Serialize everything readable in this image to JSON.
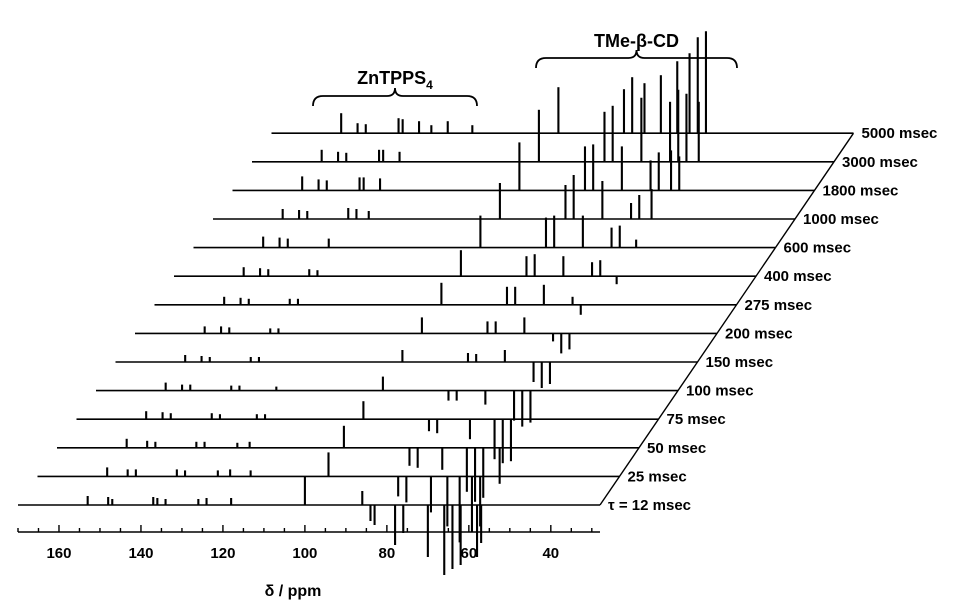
{
  "chart_data": {
    "type": "line",
    "subtype": "stacked-nmr-spectra",
    "title": "",
    "xlabel": "δ / ppm",
    "ylabel": "",
    "xlim": [
      170,
      28
    ],
    "x_reversed": true,
    "x_ticks": [
      160,
      140,
      120,
      100,
      80,
      60,
      40
    ],
    "x_tick_labels": [
      "160",
      "140",
      "120",
      "100",
      "80",
      "60",
      "40"
    ],
    "grid": false,
    "annotations": [
      {
        "label": "ZnTPPS",
        "subscript": "4",
        "x_range": [
          118,
          68
        ]
      },
      {
        "label": "TMe-β-CD",
        "x_range": [
          42,
          0
        ]
      }
    ],
    "traces": [
      {
        "label": "τ = 12 msec",
        "peaks": [
          {
            "ppm": 153,
            "h": 9
          },
          {
            "ppm": 148,
            "h": 8
          },
          {
            "ppm": 147,
            "h": 6
          },
          {
            "ppm": 137,
            "h": 8
          },
          {
            "ppm": 136,
            "h": 7
          },
          {
            "ppm": 134,
            "h": 6
          },
          {
            "ppm": 126,
            "h": 6
          },
          {
            "ppm": 124,
            "h": 7
          },
          {
            "ppm": 118,
            "h": 7
          },
          {
            "ppm": 100,
            "h": 28
          },
          {
            "ppm": 86,
            "h": 14
          },
          {
            "ppm": 84,
            "h": -16
          },
          {
            "ppm": 83,
            "h": -20
          },
          {
            "ppm": 78,
            "h": -40
          },
          {
            "ppm": 76,
            "h": -28
          },
          {
            "ppm": 70,
            "h": -52
          },
          {
            "ppm": 66,
            "h": -70
          },
          {
            "ppm": 64,
            "h": -64
          },
          {
            "ppm": 62,
            "h": -60
          },
          {
            "ppm": 58,
            "h": -52
          },
          {
            "ppm": 57,
            "h": -38
          }
        ]
      },
      {
        "label": "25 msec",
        "peaks": [
          {
            "ppm": 153,
            "h": 9
          },
          {
            "ppm": 148,
            "h": 7
          },
          {
            "ppm": 146,
            "h": 7
          },
          {
            "ppm": 136,
            "h": 7
          },
          {
            "ppm": 134,
            "h": 6
          },
          {
            "ppm": 126,
            "h": 6
          },
          {
            "ppm": 123,
            "h": 7
          },
          {
            "ppm": 118,
            "h": 6
          },
          {
            "ppm": 99,
            "h": 24
          },
          {
            "ppm": 82,
            "h": -20
          },
          {
            "ppm": 80,
            "h": -26
          },
          {
            "ppm": 74,
            "h": -36
          },
          {
            "ppm": 70,
            "h": -50
          },
          {
            "ppm": 67,
            "h": -66
          },
          {
            "ppm": 64,
            "h": -56
          },
          {
            "ppm": 62,
            "h": -50
          }
        ]
      },
      {
        "label": "50 msec",
        "peaks": [
          {
            "ppm": 153,
            "h": 9
          },
          {
            "ppm": 148,
            "h": 7
          },
          {
            "ppm": 146,
            "h": 6
          },
          {
            "ppm": 136,
            "h": 6
          },
          {
            "ppm": 134,
            "h": 6
          },
          {
            "ppm": 126,
            "h": 5
          },
          {
            "ppm": 123,
            "h": 6
          },
          {
            "ppm": 100,
            "h": 22
          },
          {
            "ppm": 84,
            "h": -18
          },
          {
            "ppm": 82,
            "h": -20
          },
          {
            "ppm": 76,
            "h": -22
          },
          {
            "ppm": 70,
            "h": -44
          },
          {
            "ppm": 68,
            "h": -54
          },
          {
            "ppm": 66,
            "h": -50
          },
          {
            "ppm": 62,
            "h": -36
          }
        ]
      },
      {
        "label": "75 msec",
        "peaks": [
          {
            "ppm": 153,
            "h": 8
          },
          {
            "ppm": 149,
            "h": 7
          },
          {
            "ppm": 147,
            "h": 6
          },
          {
            "ppm": 137,
            "h": 6
          },
          {
            "ppm": 135,
            "h": 5
          },
          {
            "ppm": 126,
            "h": 5
          },
          {
            "ppm": 124,
            "h": 5
          },
          {
            "ppm": 100,
            "h": 18
          },
          {
            "ppm": 84,
            "h": -12
          },
          {
            "ppm": 82,
            "h": -14
          },
          {
            "ppm": 74,
            "h": -20
          },
          {
            "ppm": 68,
            "h": -40
          },
          {
            "ppm": 66,
            "h": -44
          },
          {
            "ppm": 64,
            "h": -42
          }
        ]
      },
      {
        "label": "100 msec",
        "peaks": [
          {
            "ppm": 153,
            "h": 8
          },
          {
            "ppm": 149,
            "h": 6
          },
          {
            "ppm": 147,
            "h": 6
          },
          {
            "ppm": 137,
            "h": 5
          },
          {
            "ppm": 135,
            "h": 5
          },
          {
            "ppm": 126,
            "h": 4
          },
          {
            "ppm": 100,
            "h": 14
          },
          {
            "ppm": 84,
            "h": -10
          },
          {
            "ppm": 82,
            "h": -10
          },
          {
            "ppm": 75,
            "h": -14
          },
          {
            "ppm": 68,
            "h": -30
          },
          {
            "ppm": 66,
            "h": -36
          },
          {
            "ppm": 64,
            "h": -32
          }
        ]
      },
      {
        "label": "150 msec",
        "peaks": [
          {
            "ppm": 153,
            "h": 7
          },
          {
            "ppm": 149,
            "h": 6
          },
          {
            "ppm": 147,
            "h": 5
          },
          {
            "ppm": 137,
            "h": 5
          },
          {
            "ppm": 135,
            "h": 5
          },
          {
            "ppm": 100,
            "h": 12
          },
          {
            "ppm": 84,
            "h": 9
          },
          {
            "ppm": 82,
            "h": 8
          },
          {
            "ppm": 75,
            "h": 12
          },
          {
            "ppm": 68,
            "h": -20
          },
          {
            "ppm": 66,
            "h": -26
          },
          {
            "ppm": 64,
            "h": -22
          }
        ]
      },
      {
        "label": "200 msec",
        "peaks": [
          {
            "ppm": 153,
            "h": 7
          },
          {
            "ppm": 149,
            "h": 7
          },
          {
            "ppm": 147,
            "h": 6
          },
          {
            "ppm": 137,
            "h": 5
          },
          {
            "ppm": 135,
            "h": 5
          },
          {
            "ppm": 100,
            "h": 16
          },
          {
            "ppm": 84,
            "h": 12
          },
          {
            "ppm": 82,
            "h": 12
          },
          {
            "ppm": 75,
            "h": 16
          },
          {
            "ppm": 68,
            "h": -8
          },
          {
            "ppm": 66,
            "h": -20
          },
          {
            "ppm": 64,
            "h": -16
          }
        ]
      },
      {
        "label": "275 msec",
        "peaks": [
          {
            "ppm": 153,
            "h": 8
          },
          {
            "ppm": 149,
            "h": 7
          },
          {
            "ppm": 147,
            "h": 6
          },
          {
            "ppm": 137,
            "h": 6
          },
          {
            "ppm": 135,
            "h": 6
          },
          {
            "ppm": 100,
            "h": 22
          },
          {
            "ppm": 84,
            "h": 18
          },
          {
            "ppm": 82,
            "h": 18
          },
          {
            "ppm": 75,
            "h": 20
          },
          {
            "ppm": 68,
            "h": 8
          },
          {
            "ppm": 66,
            "h": -10
          }
        ]
      },
      {
        "label": "400 msec",
        "peaks": [
          {
            "ppm": 153,
            "h": 9
          },
          {
            "ppm": 149,
            "h": 8
          },
          {
            "ppm": 147,
            "h": 7
          },
          {
            "ppm": 137,
            "h": 7
          },
          {
            "ppm": 135,
            "h": 6
          },
          {
            "ppm": 100,
            "h": 26
          },
          {
            "ppm": 84,
            "h": 20
          },
          {
            "ppm": 82,
            "h": 22
          },
          {
            "ppm": 75,
            "h": 20
          },
          {
            "ppm": 68,
            "h": 14
          },
          {
            "ppm": 66,
            "h": 16
          },
          {
            "ppm": 62,
            "h": -8
          }
        ]
      },
      {
        "label": "600 msec",
        "peaks": [
          {
            "ppm": 153,
            "h": 11
          },
          {
            "ppm": 149,
            "h": 10
          },
          {
            "ppm": 147,
            "h": 9
          },
          {
            "ppm": 137,
            "h": 9
          },
          {
            "ppm": 100,
            "h": 32
          },
          {
            "ppm": 84,
            "h": 30
          },
          {
            "ppm": 82,
            "h": 32
          },
          {
            "ppm": 75,
            "h": 32
          },
          {
            "ppm": 68,
            "h": 20
          },
          {
            "ppm": 66,
            "h": 22
          },
          {
            "ppm": 62,
            "h": 8
          }
        ]
      },
      {
        "label": "1000 msec",
        "peaks": [
          {
            "ppm": 153,
            "h": 10
          },
          {
            "ppm": 149,
            "h": 9
          },
          {
            "ppm": 147,
            "h": 8
          },
          {
            "ppm": 137,
            "h": 11
          },
          {
            "ppm": 135,
            "h": 10
          },
          {
            "ppm": 132,
            "h": 8
          },
          {
            "ppm": 100,
            "h": 36
          },
          {
            "ppm": 84,
            "h": 34
          },
          {
            "ppm": 82,
            "h": 44
          },
          {
            "ppm": 75,
            "h": 38
          },
          {
            "ppm": 68,
            "h": 16
          },
          {
            "ppm": 66,
            "h": 24
          },
          {
            "ppm": 63,
            "h": 30
          }
        ]
      },
      {
        "label": "1800 msec",
        "peaks": [
          {
            "ppm": 153,
            "h": 14
          },
          {
            "ppm": 149,
            "h": 11
          },
          {
            "ppm": 147,
            "h": 10
          },
          {
            "ppm": 139,
            "h": 13
          },
          {
            "ppm": 138,
            "h": 13
          },
          {
            "ppm": 134,
            "h": 12
          },
          {
            "ppm": 100,
            "h": 48
          },
          {
            "ppm": 84,
            "h": 44
          },
          {
            "ppm": 82,
            "h": 46
          },
          {
            "ppm": 75,
            "h": 44
          },
          {
            "ppm": 68,
            "h": 30
          },
          {
            "ppm": 66,
            "h": 38
          },
          {
            "ppm": 63,
            "h": 40
          },
          {
            "ppm": 61,
            "h": 34
          }
        ]
      },
      {
        "label": "3000 msec",
        "peaks": [
          {
            "ppm": 153,
            "h": 12
          },
          {
            "ppm": 149,
            "h": 10
          },
          {
            "ppm": 147,
            "h": 9
          },
          {
            "ppm": 139,
            "h": 12
          },
          {
            "ppm": 138,
            "h": 12
          },
          {
            "ppm": 134,
            "h": 10
          },
          {
            "ppm": 100,
            "h": 52
          },
          {
            "ppm": 84,
            "h": 50
          },
          {
            "ppm": 82,
            "h": 56
          },
          {
            "ppm": 75,
            "h": 64
          },
          {
            "ppm": 68,
            "h": 60
          },
          {
            "ppm": 66,
            "h": 72
          },
          {
            "ppm": 64,
            "h": 68
          },
          {
            "ppm": 61,
            "h": 60
          }
        ]
      },
      {
        "label": "5000 msec",
        "peaks": [
          {
            "ppm": 153,
            "h": 20
          },
          {
            "ppm": 149,
            "h": 10
          },
          {
            "ppm": 147,
            "h": 9
          },
          {
            "ppm": 139,
            "h": 15
          },
          {
            "ppm": 138,
            "h": 14
          },
          {
            "ppm": 134,
            "h": 12
          },
          {
            "ppm": 131,
            "h": 8
          },
          {
            "ppm": 127,
            "h": 12
          },
          {
            "ppm": 121,
            "h": 8
          },
          {
            "ppm": 100,
            "h": 46
          },
          {
            "ppm": 84,
            "h": 44
          },
          {
            "ppm": 82,
            "h": 56
          },
          {
            "ppm": 79,
            "h": 50
          },
          {
            "ppm": 75,
            "h": 58
          },
          {
            "ppm": 71,
            "h": 72
          },
          {
            "ppm": 68,
            "h": 80
          },
          {
            "ppm": 66,
            "h": 96
          },
          {
            "ppm": 64,
            "h": 102
          }
        ]
      }
    ]
  }
}
